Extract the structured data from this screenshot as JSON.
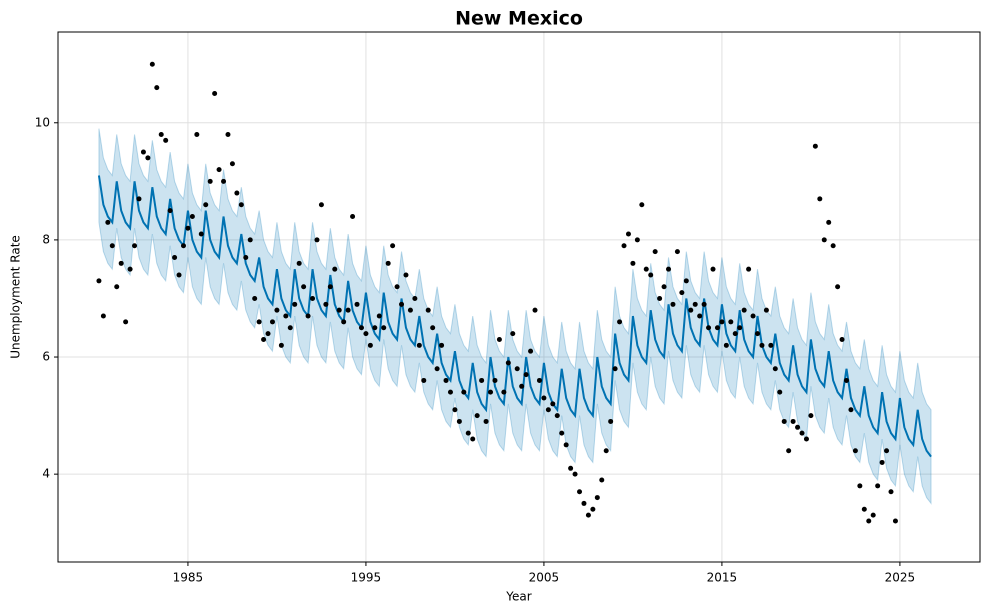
{
  "chart_data": {
    "type": "forecast",
    "title": "New Mexico",
    "xlabel": "Year",
    "ylabel": "Unemployment Rate",
    "xlim": [
      1977.7,
      2029.5
    ],
    "ylim": [
      2.5,
      11.55
    ],
    "xticks": [
      1985,
      1995,
      2005,
      2015,
      2025
    ],
    "yticks": [
      4,
      6,
      8,
      10
    ],
    "grid": true,
    "observed": {
      "color": "#000000",
      "x": [
        1980,
        1980.25,
        1980.5,
        1980.75,
        1981,
        1981.25,
        1981.5,
        1981.75,
        1982,
        1982.25,
        1982.5,
        1982.75,
        1983,
        1983.25,
        1983.5,
        1983.75,
        1984,
        1984.25,
        1984.5,
        1984.75,
        1985,
        1985.25,
        1985.5,
        1985.75,
        1986,
        1986.25,
        1986.5,
        1986.75,
        1987,
        1987.25,
        1987.5,
        1987.75,
        1988,
        1988.25,
        1988.5,
        1988.75,
        1989,
        1989.25,
        1989.5,
        1989.75,
        1990,
        1990.25,
        1990.5,
        1990.75,
        1991,
        1991.25,
        1991.5,
        1991.75,
        1992,
        1992.25,
        1992.5,
        1992.75,
        1993,
        1993.25,
        1993.5,
        1993.75,
        1994,
        1994.25,
        1994.5,
        1994.75,
        1995,
        1995.25,
        1995.5,
        1995.75,
        1996,
        1996.25,
        1996.5,
        1996.75,
        1997,
        1997.25,
        1997.5,
        1997.75,
        1998,
        1998.25,
        1998.5,
        1998.75,
        1999,
        1999.25,
        1999.5,
        1999.75,
        2000,
        2000.25,
        2000.5,
        2000.75,
        2001,
        2001.25,
        2001.5,
        2001.75,
        2002,
        2002.25,
        2002.5,
        2002.75,
        2003,
        2003.25,
        2003.5,
        2003.75,
        2004,
        2004.25,
        2004.5,
        2004.75,
        2005,
        2005.25,
        2005.5,
        2005.75,
        2006,
        2006.25,
        2006.5,
        2006.75,
        2007,
        2007.25,
        2007.5,
        2007.75,
        2008,
        2008.25,
        2008.5,
        2008.75,
        2009,
        2009.25,
        2009.5,
        2009.75,
        2010,
        2010.25,
        2010.5,
        2010.75,
        2011,
        2011.25,
        2011.5,
        2011.75,
        2012,
        2012.25,
        2012.5,
        2012.75,
        2013,
        2013.25,
        2013.5,
        2013.75,
        2014,
        2014.25,
        2014.5,
        2014.75,
        2015,
        2015.25,
        2015.5,
        2015.75,
        2016,
        2016.25,
        2016.5,
        2016.75,
        2017,
        2017.25,
        2017.5,
        2017.75,
        2018,
        2018.25,
        2018.5,
        2018.75,
        2019,
        2019.25,
        2019.5,
        2019.75,
        2020,
        2020.25,
        2020.5,
        2020.75,
        2021,
        2021.25,
        2021.5,
        2021.75,
        2022,
        2022.25,
        2022.5,
        2022.75,
        2023,
        2023.25,
        2023.5,
        2023.75,
        2024,
        2024.25,
        2024.5,
        2024.75
      ],
      "values": [
        7.3,
        6.7,
        8.3,
        7.9,
        7.2,
        7.6,
        6.6,
        7.5,
        7.9,
        8.7,
        9.5,
        9.4,
        11.0,
        10.6,
        9.8,
        9.7,
        8.5,
        7.7,
        7.4,
        7.9,
        8.2,
        8.4,
        9.8,
        8.1,
        8.6,
        9.0,
        10.5,
        9.2,
        9.0,
        9.8,
        9.3,
        8.8,
        8.6,
        7.7,
        8.0,
        7.0,
        6.6,
        6.3,
        6.4,
        6.6,
        6.8,
        6.2,
        6.7,
        6.5,
        6.9,
        7.6,
        7.2,
        6.7,
        7.0,
        8.0,
        8.6,
        6.9,
        7.2,
        7.5,
        6.8,
        6.6,
        6.8,
        8.4,
        6.9,
        6.5,
        6.4,
        6.2,
        6.5,
        6.7,
        6.5,
        7.6,
        7.9,
        7.2,
        6.9,
        7.4,
        6.8,
        7.0,
        6.2,
        5.6,
        6.8,
        6.5,
        5.8,
        6.2,
        5.6,
        5.4,
        5.1,
        4.9,
        5.4,
        4.7,
        4.6,
        5.0,
        5.6,
        4.9,
        5.4,
        5.6,
        6.3,
        5.4,
        5.9,
        6.4,
        5.8,
        5.5,
        5.7,
        6.1,
        6.8,
        5.6,
        5.3,
        5.1,
        5.2,
        5.0,
        4.7,
        4.5,
        4.1,
        4.0,
        3.7,
        3.5,
        3.3,
        3.4,
        3.6,
        3.9,
        4.4,
        4.9,
        5.8,
        6.6,
        7.9,
        8.1,
        7.6,
        8.0,
        8.6,
        7.5,
        7.4,
        7.8,
        7.0,
        7.2,
        7.5,
        6.9,
        7.8,
        7.1,
        7.3,
        6.8,
        6.9,
        6.7,
        6.9,
        6.5,
        7.5,
        6.5,
        6.6,
        6.2,
        6.6,
        6.4,
        6.5,
        6.8,
        7.5,
        6.7,
        6.4,
        6.2,
        6.8,
        6.2,
        5.8,
        5.4,
        4.9,
        4.4,
        4.9,
        4.8,
        4.7,
        4.6,
        5.0,
        9.6,
        8.7,
        8.0,
        8.3,
        7.9,
        7.2,
        6.3,
        5.6,
        5.1,
        4.4,
        3.8,
        3.4,
        3.2,
        3.3,
        3.8,
        4.2,
        4.4,
        3.7,
        3.2
      ]
    },
    "forecast": {
      "color": "#0072B2",
      "x": [
        1980,
        1980.25,
        1980.5,
        1980.75,
        1981,
        1981.25,
        1981.5,
        1981.75,
        1982,
        1982.25,
        1982.5,
        1982.75,
        1983,
        1983.25,
        1983.5,
        1983.75,
        1984,
        1984.25,
        1984.5,
        1984.75,
        1985,
        1985.25,
        1985.5,
        1985.75,
        1986,
        1986.25,
        1986.5,
        1986.75,
        1987,
        1987.25,
        1987.5,
        1987.75,
        1988,
        1988.25,
        1988.5,
        1988.75,
        1989,
        1989.25,
        1989.5,
        1989.75,
        1990,
        1990.25,
        1990.5,
        1990.75,
        1991,
        1991.25,
        1991.5,
        1991.75,
        1992,
        1992.25,
        1992.5,
        1992.75,
        1993,
        1993.25,
        1993.5,
        1993.75,
        1994,
        1994.25,
        1994.5,
        1994.75,
        1995,
        1995.25,
        1995.5,
        1995.75,
        1996,
        1996.25,
        1996.5,
        1996.75,
        1997,
        1997.25,
        1997.5,
        1997.75,
        1998,
        1998.25,
        1998.5,
        1998.75,
        1999,
        1999.25,
        1999.5,
        1999.75,
        2000,
        2000.25,
        2000.5,
        2000.75,
        2001,
        2001.25,
        2001.5,
        2001.75,
        2002,
        2002.25,
        2002.5,
        2002.75,
        2003,
        2003.25,
        2003.5,
        2003.75,
        2004,
        2004.25,
        2004.5,
        2004.75,
        2005,
        2005.25,
        2005.5,
        2005.75,
        2006,
        2006.25,
        2006.5,
        2006.75,
        2007,
        2007.25,
        2007.5,
        2007.75,
        2008,
        2008.25,
        2008.5,
        2008.75,
        2009,
        2009.25,
        2009.5,
        2009.75,
        2010,
        2010.25,
        2010.5,
        2010.75,
        2011,
        2011.25,
        2011.5,
        2011.75,
        2012,
        2012.25,
        2012.5,
        2012.75,
        2013,
        2013.25,
        2013.5,
        2013.75,
        2014,
        2014.25,
        2014.5,
        2014.75,
        2015,
        2015.25,
        2015.5,
        2015.75,
        2016,
        2016.25,
        2016.5,
        2016.75,
        2017,
        2017.25,
        2017.5,
        2017.75,
        2018,
        2018.25,
        2018.5,
        2018.75,
        2019,
        2019.25,
        2019.5,
        2019.75,
        2020,
        2020.25,
        2020.5,
        2020.75,
        2021,
        2021.25,
        2021.5,
        2021.75,
        2022,
        2022.25,
        2022.5,
        2022.75,
        2023,
        2023.25,
        2023.5,
        2023.75,
        2024,
        2024.25,
        2024.5,
        2024.75,
        2025,
        2025.25,
        2025.5,
        2025.75,
        2026,
        2026.25,
        2026.5,
        2026.75
      ],
      "values": [
        9.1,
        8.6,
        8.4,
        8.3,
        9.0,
        8.5,
        8.3,
        8.2,
        9.0,
        8.5,
        8.3,
        8.2,
        8.9,
        8.4,
        8.2,
        8.1,
        8.7,
        8.2,
        8.0,
        7.9,
        8.5,
        8.0,
        7.8,
        7.7,
        8.5,
        8.0,
        7.8,
        7.7,
        8.4,
        7.9,
        7.7,
        7.6,
        8.1,
        7.6,
        7.4,
        7.3,
        7.7,
        7.2,
        7.0,
        6.9,
        7.5,
        7.0,
        6.8,
        6.7,
        7.5,
        7.0,
        6.8,
        6.7,
        7.5,
        7.0,
        6.8,
        6.7,
        7.4,
        6.9,
        6.7,
        6.6,
        7.3,
        6.8,
        6.6,
        6.5,
        7.1,
        6.6,
        6.4,
        6.3,
        7.1,
        6.6,
        6.4,
        6.3,
        7.0,
        6.5,
        6.3,
        6.2,
        6.7,
        6.2,
        6.0,
        5.9,
        6.4,
        5.9,
        5.7,
        5.6,
        6.1,
        5.6,
        5.4,
        5.3,
        5.9,
        5.4,
        5.2,
        5.1,
        6.0,
        5.5,
        5.3,
        5.2,
        6.0,
        5.5,
        5.3,
        5.2,
        6.0,
        5.5,
        5.3,
        5.2,
        5.9,
        5.4,
        5.2,
        5.1,
        5.8,
        5.3,
        5.1,
        5.0,
        5.8,
        5.3,
        5.1,
        5.0,
        6.0,
        5.5,
        5.3,
        5.2,
        6.4,
        5.9,
        5.7,
        5.6,
        6.7,
        6.2,
        6.0,
        5.9,
        6.8,
        6.3,
        6.1,
        6.0,
        6.9,
        6.4,
        6.2,
        6.1,
        7.0,
        6.5,
        6.3,
        6.2,
        7.0,
        6.5,
        6.3,
        6.2,
        6.9,
        6.4,
        6.2,
        6.1,
        6.8,
        6.3,
        6.1,
        6.0,
        6.7,
        6.2,
        6.0,
        5.9,
        6.4,
        5.9,
        5.7,
        5.6,
        6.2,
        5.7,
        5.5,
        5.4,
        6.3,
        5.8,
        5.6,
        5.5,
        6.1,
        5.6,
        5.4,
        5.3,
        5.8,
        5.3,
        5.1,
        5.0,
        5.5,
        5.0,
        4.8,
        4.7,
        5.4,
        4.9,
        4.7,
        4.6,
        5.3,
        4.8,
        4.6,
        4.5,
        5.1,
        4.6,
        4.4,
        4.3
      ],
      "lower": [
        8.3,
        7.8,
        7.6,
        7.5,
        8.2,
        7.7,
        7.5,
        7.4,
        8.2,
        7.7,
        7.5,
        7.4,
        8.1,
        7.6,
        7.4,
        7.3,
        7.9,
        7.4,
        7.2,
        7.1,
        7.7,
        7.2,
        7.0,
        6.9,
        7.7,
        7.2,
        7.0,
        6.9,
        7.6,
        7.1,
        6.9,
        6.8,
        7.3,
        6.8,
        6.6,
        6.5,
        6.9,
        6.4,
        6.2,
        6.1,
        6.7,
        6.2,
        6.0,
        5.9,
        6.7,
        6.2,
        6.0,
        5.9,
        6.7,
        6.2,
        6.0,
        5.9,
        6.6,
        6.1,
        5.9,
        5.8,
        6.5,
        6.0,
        5.8,
        5.7,
        6.3,
        5.8,
        5.6,
        5.5,
        6.3,
        5.8,
        5.6,
        5.5,
        6.2,
        5.7,
        5.5,
        5.4,
        5.9,
        5.4,
        5.2,
        5.1,
        5.6,
        5.1,
        4.9,
        4.8,
        5.3,
        4.8,
        4.6,
        4.5,
        5.1,
        4.6,
        4.4,
        4.3,
        5.2,
        4.7,
        4.5,
        4.4,
        5.2,
        4.7,
        4.5,
        4.4,
        5.2,
        4.7,
        4.5,
        4.4,
        5.1,
        4.6,
        4.4,
        4.3,
        5.0,
        4.5,
        4.3,
        4.2,
        5.0,
        4.5,
        4.3,
        4.2,
        5.2,
        4.7,
        4.5,
        4.4,
        5.6,
        5.1,
        4.9,
        4.8,
        5.9,
        5.4,
        5.2,
        5.1,
        6.0,
        5.5,
        5.3,
        5.2,
        6.1,
        5.6,
        5.4,
        5.3,
        6.2,
        5.7,
        5.5,
        5.4,
        6.2,
        5.7,
        5.5,
        5.4,
        6.1,
        5.6,
        5.4,
        5.3,
        6.0,
        5.5,
        5.3,
        5.2,
        5.9,
        5.4,
        5.2,
        5.1,
        5.6,
        5.1,
        4.9,
        4.8,
        5.4,
        4.9,
        4.7,
        4.6,
        5.5,
        5.0,
        4.8,
        4.7,
        5.3,
        4.8,
        4.6,
        4.5,
        5.0,
        4.5,
        4.3,
        4.2,
        4.7,
        4.2,
        4.0,
        3.9,
        4.6,
        4.1,
        3.9,
        3.8,
        4.5,
        4.0,
        3.8,
        3.7,
        4.3,
        3.8,
        3.6,
        3.5
      ],
      "upper": [
        9.9,
        9.4,
        9.2,
        9.1,
        9.8,
        9.3,
        9.1,
        9.0,
        9.8,
        9.3,
        9.1,
        9.0,
        9.7,
        9.2,
        9.0,
        8.9,
        9.5,
        9.0,
        8.8,
        8.7,
        9.3,
        8.8,
        8.6,
        8.5,
        9.3,
        8.8,
        8.6,
        8.5,
        9.2,
        8.7,
        8.5,
        8.4,
        8.9,
        8.4,
        8.2,
        8.1,
        8.5,
        8.0,
        7.8,
        7.7,
        8.3,
        7.8,
        7.6,
        7.5,
        8.3,
        7.8,
        7.6,
        7.5,
        8.3,
        7.8,
        7.6,
        7.5,
        8.2,
        7.7,
        7.5,
        7.4,
        8.1,
        7.6,
        7.4,
        7.3,
        7.9,
        7.4,
        7.2,
        7.1,
        7.9,
        7.4,
        7.2,
        7.1,
        7.8,
        7.3,
        7.1,
        7.0,
        7.5,
        7.0,
        6.8,
        6.7,
        7.2,
        6.7,
        6.5,
        6.4,
        6.9,
        6.4,
        6.2,
        6.1,
        6.7,
        6.2,
        6.0,
        5.9,
        6.8,
        6.3,
        6.1,
        6.0,
        6.8,
        6.3,
        6.1,
        6.0,
        6.8,
        6.3,
        6.1,
        6.0,
        6.7,
        6.2,
        6.0,
        5.9,
        6.6,
        6.1,
        5.9,
        5.8,
        6.6,
        6.1,
        5.9,
        5.8,
        6.8,
        6.3,
        6.1,
        6.0,
        7.2,
        6.7,
        6.5,
        6.4,
        7.5,
        7.0,
        6.8,
        6.7,
        7.6,
        7.1,
        6.9,
        6.8,
        7.7,
        7.2,
        7.0,
        6.9,
        7.8,
        7.3,
        7.1,
        7.0,
        7.8,
        7.3,
        7.1,
        7.0,
        7.7,
        7.2,
        7.0,
        6.9,
        7.6,
        7.1,
        6.9,
        6.8,
        7.5,
        7.0,
        6.8,
        6.7,
        7.2,
        6.7,
        6.5,
        6.4,
        7.0,
        6.5,
        6.3,
        6.2,
        7.1,
        6.6,
        6.4,
        6.3,
        6.9,
        6.4,
        6.2,
        6.1,
        6.6,
        6.1,
        5.9,
        5.8,
        6.3,
        5.8,
        5.6,
        5.5,
        6.2,
        5.7,
        5.5,
        5.4,
        6.1,
        5.6,
        5.4,
        5.3,
        5.9,
        5.4,
        5.2,
        5.1
      ]
    }
  }
}
